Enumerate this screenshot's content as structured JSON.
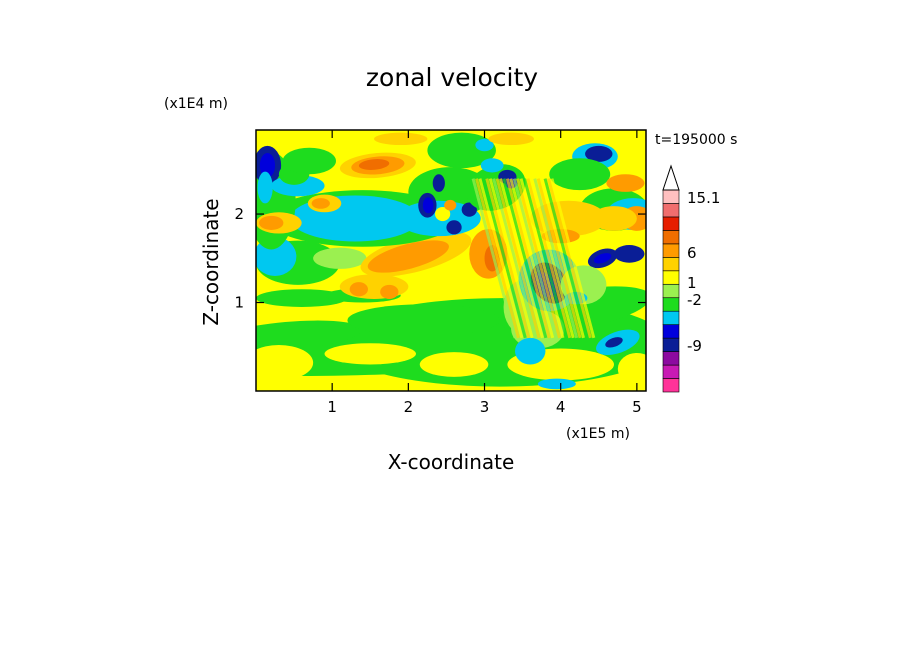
{
  "chart_data": {
    "type": "heatmap",
    "title": "zonal velocity",
    "time_label": "t=195000 s",
    "xlabel": "X-coordinate",
    "ylabel": "Z-coordinate",
    "x_scale_label": "(x1E5 m)",
    "y_scale_label": "(x1E4 m)",
    "x_ticks": [
      "1",
      "2",
      "3",
      "4",
      "5"
    ],
    "y_ticks": [
      "1",
      "2"
    ],
    "xlim": [
      0,
      5.12
    ],
    "ylim": [
      0,
      2.95
    ],
    "grid": false,
    "colorbar": {
      "orientation": "vertical",
      "position": "right",
      "labels": [
        "15.1",
        "6",
        "1",
        "-2",
        "-9"
      ],
      "colors": [
        "#ff3399",
        "#c81ab4",
        "#8c0aa0",
        "#0a1e96",
        "#0000dc",
        "#00c8f0",
        "#1edc1e",
        "#9bf050",
        "#ffff00",
        "#ffd200",
        "#ff9b00",
        "#f06e00",
        "#e61e00",
        "#f06e6e",
        "#ffc0c0"
      ]
    },
    "colors": {
      "magenta": "#ff3399",
      "purple": "#8c0aa0",
      "darkblue": "#0a1e96",
      "blue": "#0000dc",
      "cyan": "#00c8f0",
      "green": "#1edc1e",
      "lightgreen": "#9bf050",
      "yellow": "#ffff00",
      "gold": "#ffd200",
      "orange": "#ff9b00",
      "darkorange": "#f06e00",
      "red": "#e61e00",
      "pink": "#f06e6e",
      "lightpink": "#ffc0c0"
    }
  }
}
